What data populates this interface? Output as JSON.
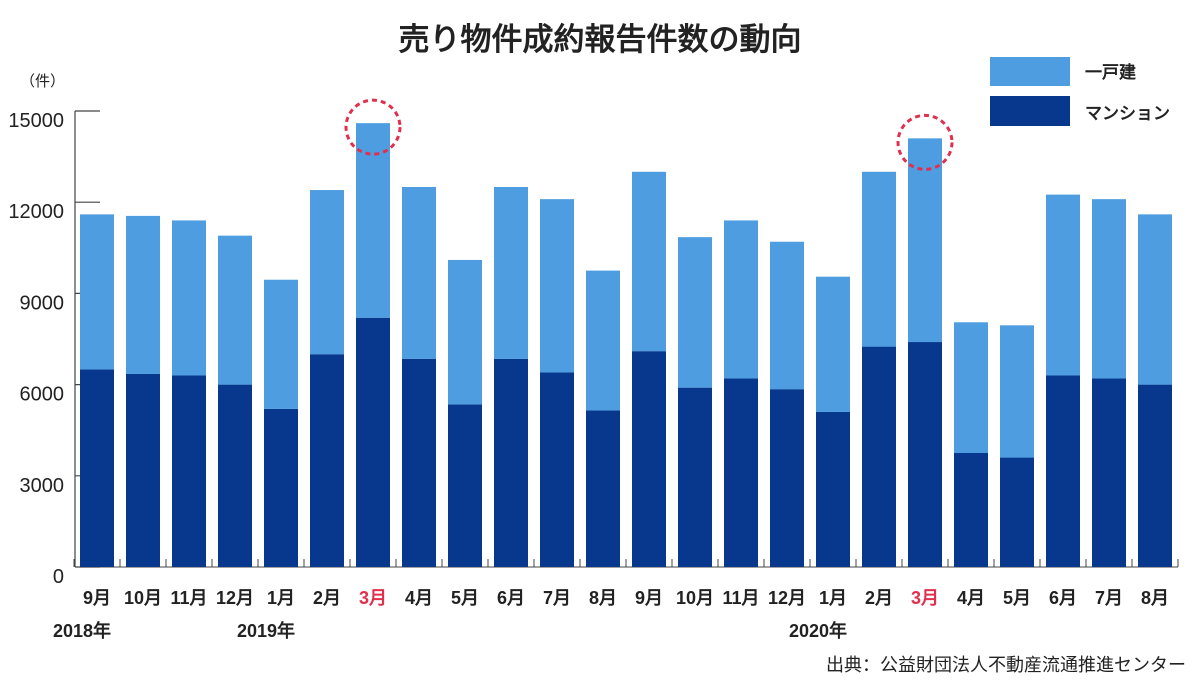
{
  "chart_data": {
    "type": "bar",
    "stacked": true,
    "title": "売り物件成約報告件数の動向",
    "ylabel": "（件）",
    "ylim": [
      0,
      15000
    ],
    "yticks": [
      0,
      3000,
      6000,
      9000,
      12000,
      15000
    ],
    "grid": false,
    "legend_position": "top-right",
    "categories": [
      "9月",
      "10月",
      "11月",
      "12月",
      "1月",
      "2月",
      "3月",
      "4月",
      "5月",
      "6月",
      "7月",
      "8月",
      "9月",
      "10月",
      "11月",
      "12月",
      "1月",
      "2月",
      "3月",
      "4月",
      "5月",
      "6月",
      "7月",
      "8月"
    ],
    "year_labels": [
      {
        "text": "2018年",
        "category_index": 0
      },
      {
        "text": "2019年",
        "category_index": 4
      },
      {
        "text": "2020年",
        "category_index": 16
      }
    ],
    "series": [
      {
        "name": "マンション",
        "color": "#07388e",
        "values": [
          6500,
          6350,
          6300,
          6000,
          5200,
          7000,
          8200,
          6850,
          5350,
          6850,
          6400,
          5150,
          7100,
          5900,
          6200,
          5850,
          5100,
          7250,
          7400,
          3750,
          3600,
          6300,
          6200,
          6000
        ]
      },
      {
        "name": "一戸建",
        "color": "#4d9de0",
        "values": [
          5100,
          5200,
          5100,
          4900,
          4250,
          5400,
          6400,
          5650,
          4750,
          5650,
          5700,
          4600,
          5900,
          4950,
          5200,
          4850,
          4450,
          5750,
          6700,
          4300,
          4350,
          5950,
          5900,
          5600
        ]
      }
    ],
    "highlight_indices": [
      6,
      18
    ],
    "highlight_color": "#e0304e",
    "source": "出典：公益財団法人不動産流通推進センター"
  }
}
